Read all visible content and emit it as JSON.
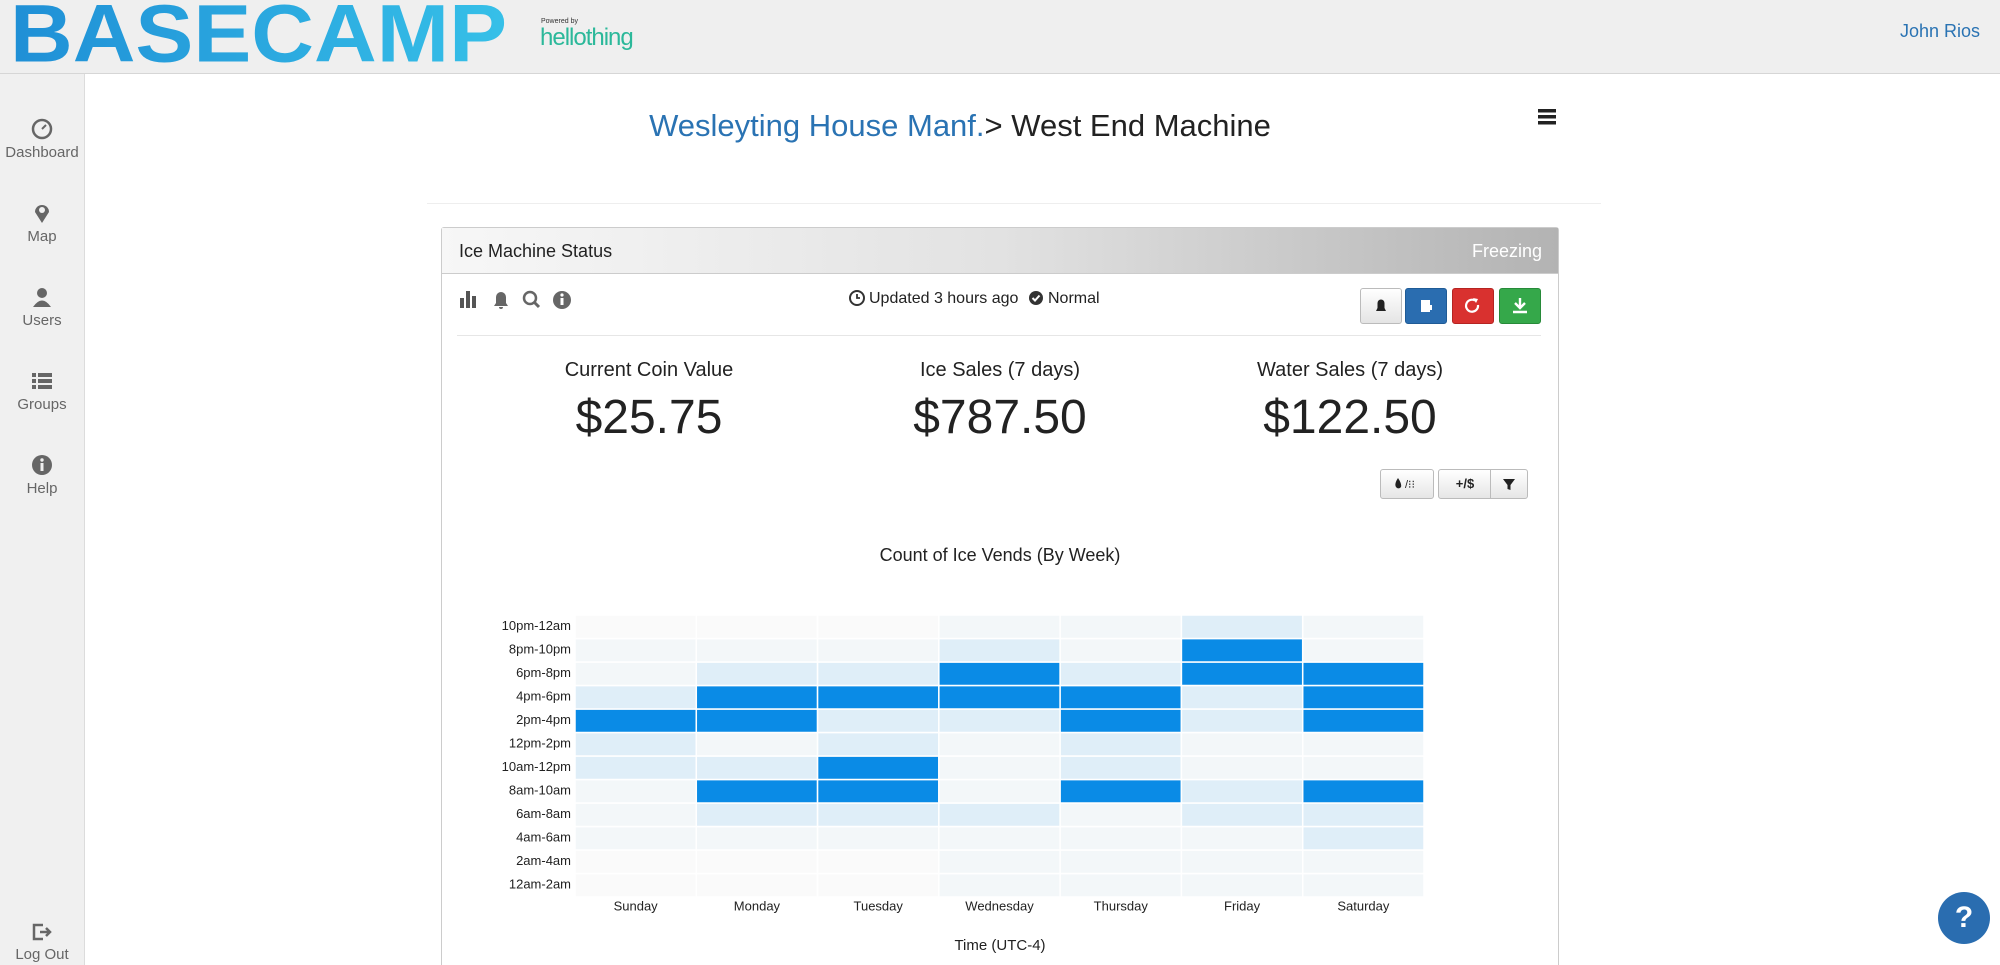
{
  "header": {
    "logo": "BASECAMP",
    "powered_by": "Powered by",
    "brand": "hellothing",
    "user": "John Rios"
  },
  "sidebar": {
    "items": [
      "Dashboard",
      "Map",
      "Users",
      "Groups",
      "Help"
    ],
    "logout": "Log Out"
  },
  "breadcrumb": {
    "parent": "Wesleyting House Manf.",
    "separator": ">",
    "current": "West End Machine"
  },
  "panel": {
    "title": "Ice Machine Status",
    "state": "Freezing",
    "updated": "Updated 3 hours ago",
    "status": "Normal",
    "stats": [
      {
        "label": "Current Coin Value",
        "value": "$25.75"
      },
      {
        "label": "Ice Sales (7 days)",
        "value": "$787.50"
      },
      {
        "label": "Water Sales (7 days)",
        "value": "$122.50"
      }
    ],
    "toggle": "+/$"
  },
  "chart_data": {
    "type": "heatmap",
    "title": "Count of Ice Vends (By Week)",
    "xlabel": "Time (UTC-4)",
    "color": "#0a8be6",
    "x_categories": [
      "Sunday",
      "Monday",
      "Tuesday",
      "Wednesday",
      "Thursday",
      "Friday",
      "Saturday"
    ],
    "y_categories": [
      "12am-2am",
      "2am-4am",
      "4am-6am",
      "6am-8am",
      "8am-10am",
      "10am-12pm",
      "12pm-2pm",
      "2pm-4pm",
      "4pm-6pm",
      "6pm-8pm",
      "8pm-10pm",
      "10pm-12am"
    ],
    "values": [
      [
        0,
        0,
        0,
        1,
        1,
        1,
        1
      ],
      [
        0,
        0,
        0,
        1,
        1,
        1,
        1
      ],
      [
        1,
        1,
        1,
        1,
        1,
        1,
        2
      ],
      [
        1,
        2,
        2,
        2,
        1,
        2,
        2
      ],
      [
        1,
        6,
        6,
        1,
        6,
        2,
        6
      ],
      [
        2,
        2,
        6,
        1,
        2,
        1,
        1
      ],
      [
        2,
        1,
        2,
        1,
        2,
        1,
        1
      ],
      [
        6,
        6,
        2,
        2,
        6,
        2,
        6
      ],
      [
        2,
        6,
        6,
        6,
        6,
        2,
        6
      ],
      [
        1,
        2,
        2,
        6,
        2,
        6,
        6
      ],
      [
        1,
        1,
        1,
        2,
        1,
        6,
        1
      ],
      [
        0,
        0,
        0,
        1,
        1,
        2,
        1
      ]
    ]
  }
}
